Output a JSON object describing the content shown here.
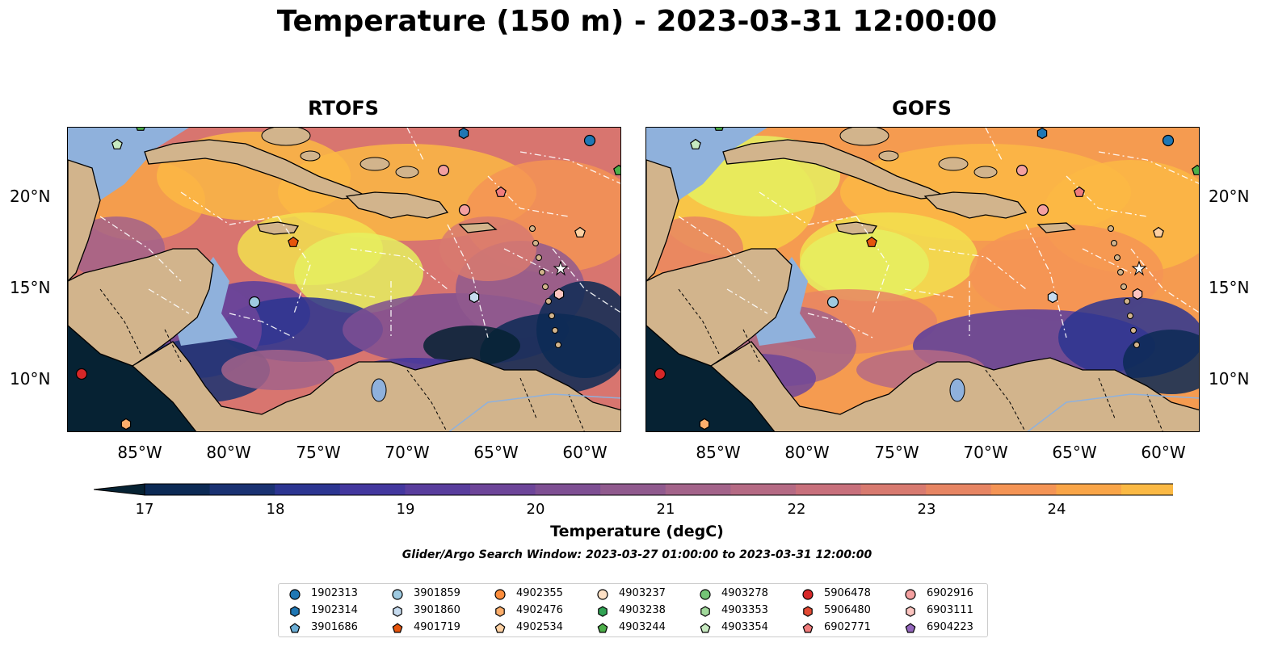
{
  "title": "Temperature (150 m) - 2023-03-31 12:00:00",
  "panels": [
    {
      "title": "RTOFS",
      "variant": "rtofs"
    },
    {
      "title": "GOFS",
      "variant": "gofs"
    }
  ],
  "axes": {
    "x_ticks": [
      "85°W",
      "80°W",
      "75°W",
      "70°W",
      "65°W",
      "60°W"
    ],
    "y_ticks": [
      "20°N",
      "15°N",
      "10°N"
    ]
  },
  "colorbar": {
    "label": "Temperature (degC)",
    "ticks": [
      "17",
      "18",
      "19",
      "20",
      "21",
      "22",
      "23",
      "24"
    ],
    "colors": [
      "#062233",
      "#0c2a55",
      "#1a3272",
      "#2c3591",
      "#43379e",
      "#593d9d",
      "#6d4599",
      "#7e4f93",
      "#905a8e",
      "#a3638a",
      "#b56a84",
      "#c8707c",
      "#d87a70",
      "#e78563",
      "#f49455",
      "#f9a548",
      "#fbb944",
      "#f8cc45",
      "#f2e04f",
      "#e5f060"
    ]
  },
  "search_window": "Glider/Argo Search Window: 2023-03-27 01:00:00 to 2023-03-31 12:00:00",
  "legend": [
    {
      "id": "1902313",
      "color": "#1f77b4",
      "shape": "circle"
    },
    {
      "id": "1902314",
      "color": "#1f77b4",
      "shape": "hexagon"
    },
    {
      "id": "3901686",
      "color": "#6baed6",
      "shape": "pentagon"
    },
    {
      "id": "3901859",
      "color": "#9ecae1",
      "shape": "circle"
    },
    {
      "id": "3901860",
      "color": "#c6dbef",
      "shape": "hexagon"
    },
    {
      "id": "4901719",
      "color": "#e6550d",
      "shape": "pentagon"
    },
    {
      "id": "4902355",
      "color": "#fd8d3c",
      "shape": "circle"
    },
    {
      "id": "4902476",
      "color": "#fdae6b",
      "shape": "hexagon"
    },
    {
      "id": "4902534",
      "color": "#fdd0a2",
      "shape": "pentagon"
    },
    {
      "id": "4903237",
      "color": "#fde0c5",
      "shape": "circle"
    },
    {
      "id": "4903238",
      "color": "#31a354",
      "shape": "hexagon"
    },
    {
      "id": "4903244",
      "color": "#4daf4a",
      "shape": "pentagon"
    },
    {
      "id": "4903278",
      "color": "#74c476",
      "shape": "circle"
    },
    {
      "id": "4903353",
      "color": "#a1d99b",
      "shape": "hexagon"
    },
    {
      "id": "4903354",
      "color": "#c7e9c0",
      "shape": "pentagon"
    },
    {
      "id": "5906478",
      "color": "#d62728",
      "shape": "circle"
    },
    {
      "id": "5906480",
      "color": "#e34a33",
      "shape": "hexagon"
    },
    {
      "id": "6902771",
      "color": "#f07c7c",
      "shape": "pentagon"
    },
    {
      "id": "6902916",
      "color": "#f4a0a0",
      "shape": "circle"
    },
    {
      "id": "6903111",
      "color": "#fcc5c0",
      "shape": "hexagon"
    },
    {
      "id": "6904223",
      "color": "#9467bd",
      "shape": "pentagon"
    }
  ]
}
